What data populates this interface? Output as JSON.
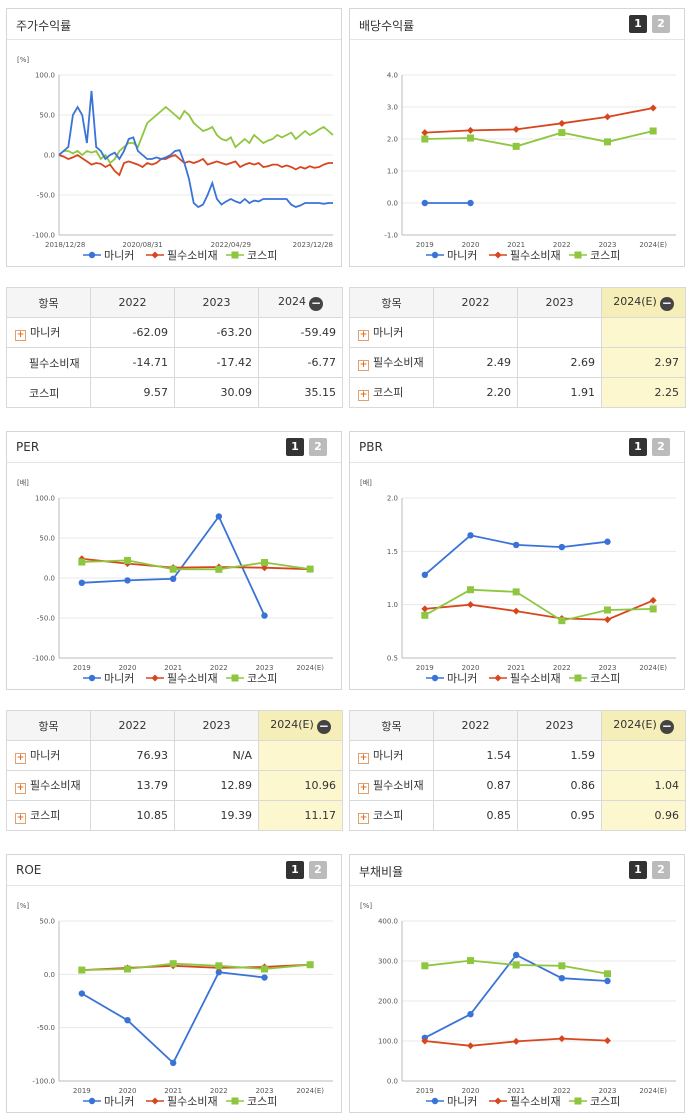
{
  "legend": {
    "s0": "마니커",
    "s1": "필수소비재",
    "s2": "코스피"
  },
  "colors": {
    "s0": "#3a73d8",
    "s1": "#d8461e",
    "s2": "#8ec63f"
  },
  "panels": {
    "stock": {
      "title": "주가수익률",
      "unit": "[%]"
    },
    "div": {
      "title": "배당수익률",
      "unit": ""
    },
    "per": {
      "title": "PER",
      "unit": "[배]"
    },
    "pbr": {
      "title": "PBR",
      "unit": "[배]"
    },
    "roe": {
      "title": "ROE",
      "unit": "[%]"
    },
    "debt": {
      "title": "부채비율",
      "unit": "[%]"
    }
  },
  "buttons": {
    "one": "1",
    "two": "2"
  },
  "tables": {
    "stock": {
      "headers": [
        "항목",
        "2022",
        "2023",
        "2024"
      ],
      "rows": [
        {
          "label": "마니커",
          "plus": true,
          "values": [
            "-62.09",
            "-63.20",
            "-59.49"
          ]
        },
        {
          "label": "필수소비재",
          "plus": false,
          "values": [
            "-14.71",
            "-17.42",
            "-6.77"
          ]
        },
        {
          "label": "코스피",
          "plus": false,
          "values": [
            "9.57",
            "30.09",
            "35.15"
          ]
        }
      ]
    },
    "div": {
      "headers": [
        "항목",
        "2022",
        "2023",
        "2024(E)"
      ],
      "rows": [
        {
          "label": "마니커",
          "plus": true,
          "values": [
            "",
            "",
            ""
          ]
        },
        {
          "label": "필수소비재",
          "plus": true,
          "values": [
            "2.49",
            "2.69",
            "2.97"
          ]
        },
        {
          "label": "코스피",
          "plus": true,
          "values": [
            "2.20",
            "1.91",
            "2.25"
          ]
        }
      ]
    },
    "per": {
      "headers": [
        "항목",
        "2022",
        "2023",
        "2024(E)"
      ],
      "rows": [
        {
          "label": "마니커",
          "plus": true,
          "values": [
            "76.93",
            "N/A",
            ""
          ]
        },
        {
          "label": "필수소비재",
          "plus": true,
          "values": [
            "13.79",
            "12.89",
            "10.96"
          ]
        },
        {
          "label": "코스피",
          "plus": true,
          "values": [
            "10.85",
            "19.39",
            "11.17"
          ]
        }
      ]
    },
    "pbr": {
      "headers": [
        "항목",
        "2022",
        "2023",
        "2024(E)"
      ],
      "rows": [
        {
          "label": "마니커",
          "plus": true,
          "values": [
            "1.54",
            "1.59",
            ""
          ]
        },
        {
          "label": "필수소비재",
          "plus": true,
          "values": [
            "0.87",
            "0.86",
            "1.04"
          ]
        },
        {
          "label": "코스피",
          "plus": true,
          "values": [
            "0.85",
            "0.95",
            "0.96"
          ]
        }
      ]
    }
  },
  "chart_data": [
    {
      "id": "stock",
      "type": "line",
      "title": "주가수익률",
      "ylabel": "[%]",
      "ylim": [
        -100,
        100
      ],
      "yticks": [
        "100.0",
        "50.0",
        "0.0",
        "-50.0",
        "-100.0"
      ],
      "xticks": [
        "2018/12/28",
        "2020/08/31",
        "2022/04/29",
        "2023/12/28"
      ],
      "x": [
        "2018/12/28",
        "2019/03",
        "2019/04",
        "2019/05",
        "2019/06",
        "2019/07",
        "2019/08",
        "2019/09",
        "2019/10",
        "2019/11",
        "2019/12",
        "2020/01",
        "2020/02",
        "2020/03",
        "2020/04",
        "2020/05",
        "2020/06",
        "2020/07",
        "2020/08",
        "2020/09",
        "2020/10",
        "2020/11",
        "2020/12",
        "2021/01",
        "2021/02",
        "2021/03",
        "2021/04",
        "2021/05",
        "2021/06",
        "2021/07",
        "2021/08",
        "2021/09",
        "2021/10",
        "2021/11",
        "2021/12",
        "2022/01",
        "2022/02",
        "2022/03",
        "2022/04",
        "2022/05",
        "2022/06",
        "2022/07",
        "2022/08",
        "2022/09",
        "2022/10",
        "2022/11",
        "2022/12",
        "2023/01",
        "2023/02",
        "2023/03",
        "2023/04",
        "2023/05",
        "2023/06",
        "2023/07",
        "2023/08",
        "2023/09",
        "2023/10",
        "2023/11",
        "2023/12",
        "2024/01"
      ],
      "series": [
        {
          "name": "마니커",
          "values": [
            0,
            5,
            10,
            50,
            60,
            50,
            15,
            80,
            10,
            5,
            -5,
            0,
            3,
            -5,
            5,
            20,
            22,
            5,
            0,
            -5,
            -5,
            -3,
            -5,
            -3,
            0,
            5,
            6,
            -10,
            -30,
            -60,
            -65,
            -62,
            -50,
            -35,
            -55,
            -62,
            -58,
            -55,
            -58,
            -60,
            -55,
            -60,
            -57,
            -58,
            -55,
            -55,
            -55,
            -55,
            -55,
            -55,
            -62,
            -65,
            -63,
            -60,
            -60,
            -60,
            -60,
            -61,
            -60,
            -60
          ]
        },
        {
          "name": "필수소비재",
          "values": [
            0,
            -2,
            -5,
            -3,
            0,
            -4,
            -8,
            -12,
            -10,
            -11,
            -15,
            -12,
            -20,
            -25,
            -10,
            -8,
            -10,
            -12,
            -15,
            -10,
            -12,
            -10,
            -5,
            -5,
            -2,
            0,
            -5,
            -10,
            -8,
            -10,
            -8,
            -5,
            -12,
            -10,
            -8,
            -10,
            -12,
            -10,
            -8,
            -15,
            -12,
            -10,
            -12,
            -10,
            -15,
            -14,
            -12,
            -12,
            -15,
            -13,
            -15,
            -18,
            -15,
            -17,
            -14,
            -16,
            -15,
            -12,
            -10,
            -10
          ]
        },
        {
          "name": "코스피",
          "values": [
            0,
            5,
            5,
            2,
            5,
            0,
            5,
            3,
            5,
            -5,
            0,
            -10,
            -5,
            5,
            10,
            15,
            15,
            10,
            25,
            40,
            45,
            50,
            55,
            60,
            55,
            50,
            45,
            55,
            50,
            40,
            35,
            30,
            32,
            35,
            25,
            20,
            18,
            22,
            10,
            15,
            20,
            15,
            25,
            20,
            15,
            18,
            20,
            25,
            22,
            25,
            28,
            20,
            25,
            30,
            25,
            28,
            32,
            35,
            30,
            25
          ]
        }
      ]
    },
    {
      "id": "div",
      "type": "line",
      "title": "배당수익률",
      "ylim": [
        -1,
        4
      ],
      "yticks": [
        "4.0",
        "3.0",
        "2.0",
        "1.0",
        "0.0",
        "-1.0"
      ],
      "categories": [
        "2019",
        "2020",
        "2021",
        "2022",
        "2023",
        "2024(E)"
      ],
      "series": [
        {
          "name": "마니커",
          "values": [
            0.0,
            0.0,
            null,
            null,
            null,
            null
          ]
        },
        {
          "name": "필수소비재",
          "values": [
            2.2,
            2.27,
            2.3,
            2.49,
            2.69,
            2.97
          ]
        },
        {
          "name": "코스피",
          "values": [
            2.0,
            2.03,
            1.77,
            2.2,
            1.91,
            2.25
          ]
        }
      ]
    },
    {
      "id": "per",
      "type": "line",
      "title": "PER",
      "ylabel": "[배]",
      "ylim": [
        -100,
        100
      ],
      "yticks": [
        "100.0",
        "50.0",
        "0.0",
        "-50.0",
        "-100.0"
      ],
      "categories": [
        "2019",
        "2020",
        "2021",
        "2022",
        "2023",
        "2024(E)"
      ],
      "series": [
        {
          "name": "마니커",
          "values": [
            -6,
            -3,
            -1,
            76.93,
            -47,
            null
          ]
        },
        {
          "name": "필수소비재",
          "values": [
            24,
            18,
            13,
            13.79,
            12.89,
            10.96
          ]
        },
        {
          "name": "코스피",
          "values": [
            20,
            22,
            11,
            10.85,
            19.39,
            11.17
          ]
        }
      ]
    },
    {
      "id": "pbr",
      "type": "line",
      "title": "PBR",
      "ylabel": "[배]",
      "ylim": [
        0.5,
        2.0
      ],
      "yticks": [
        "2.0",
        "1.5",
        "1.0",
        "0.5"
      ],
      "categories": [
        "2019",
        "2020",
        "2021",
        "2022",
        "2023",
        "2024(E)"
      ],
      "series": [
        {
          "name": "마니커",
          "values": [
            1.28,
            1.65,
            1.56,
            1.54,
            1.59,
            null
          ]
        },
        {
          "name": "필수소비재",
          "values": [
            0.96,
            1.0,
            0.94,
            0.87,
            0.86,
            1.04
          ]
        },
        {
          "name": "코스피",
          "values": [
            0.9,
            1.14,
            1.12,
            0.85,
            0.95,
            0.96
          ]
        }
      ]
    },
    {
      "id": "roe",
      "type": "line",
      "title": "ROE",
      "ylabel": "[%]",
      "ylim": [
        -100,
        50
      ],
      "yticks": [
        "50.0",
        "0.0",
        "-50.0",
        "-100.0"
      ],
      "categories": [
        "2019",
        "2020",
        "2021",
        "2022",
        "2023",
        "2024(E)"
      ],
      "series": [
        {
          "name": "마니커",
          "values": [
            -18,
            -43,
            -83,
            2,
            -3,
            null
          ]
        },
        {
          "name": "필수소비재",
          "values": [
            4,
            6,
            8,
            6,
            7,
            9
          ]
        },
        {
          "name": "코스피",
          "values": [
            4,
            5,
            10,
            8,
            5,
            9
          ]
        }
      ]
    },
    {
      "id": "debt",
      "type": "line",
      "title": "부채비율",
      "ylabel": "[%]",
      "ylim": [
        0,
        400
      ],
      "yticks": [
        "400.0",
        "300.0",
        "200.0",
        "100.0",
        "0.0"
      ],
      "categories": [
        "2019",
        "2020",
        "2021",
        "2022",
        "2023",
        "2024(E)"
      ],
      "series": [
        {
          "name": "마니커",
          "values": [
            108,
            167,
            315,
            257,
            250,
            null
          ]
        },
        {
          "name": "필수소비재",
          "values": [
            100,
            88,
            99,
            106,
            101,
            null
          ]
        },
        {
          "name": "코스피",
          "values": [
            288,
            301,
            290,
            288,
            268,
            null
          ]
        }
      ]
    }
  ]
}
